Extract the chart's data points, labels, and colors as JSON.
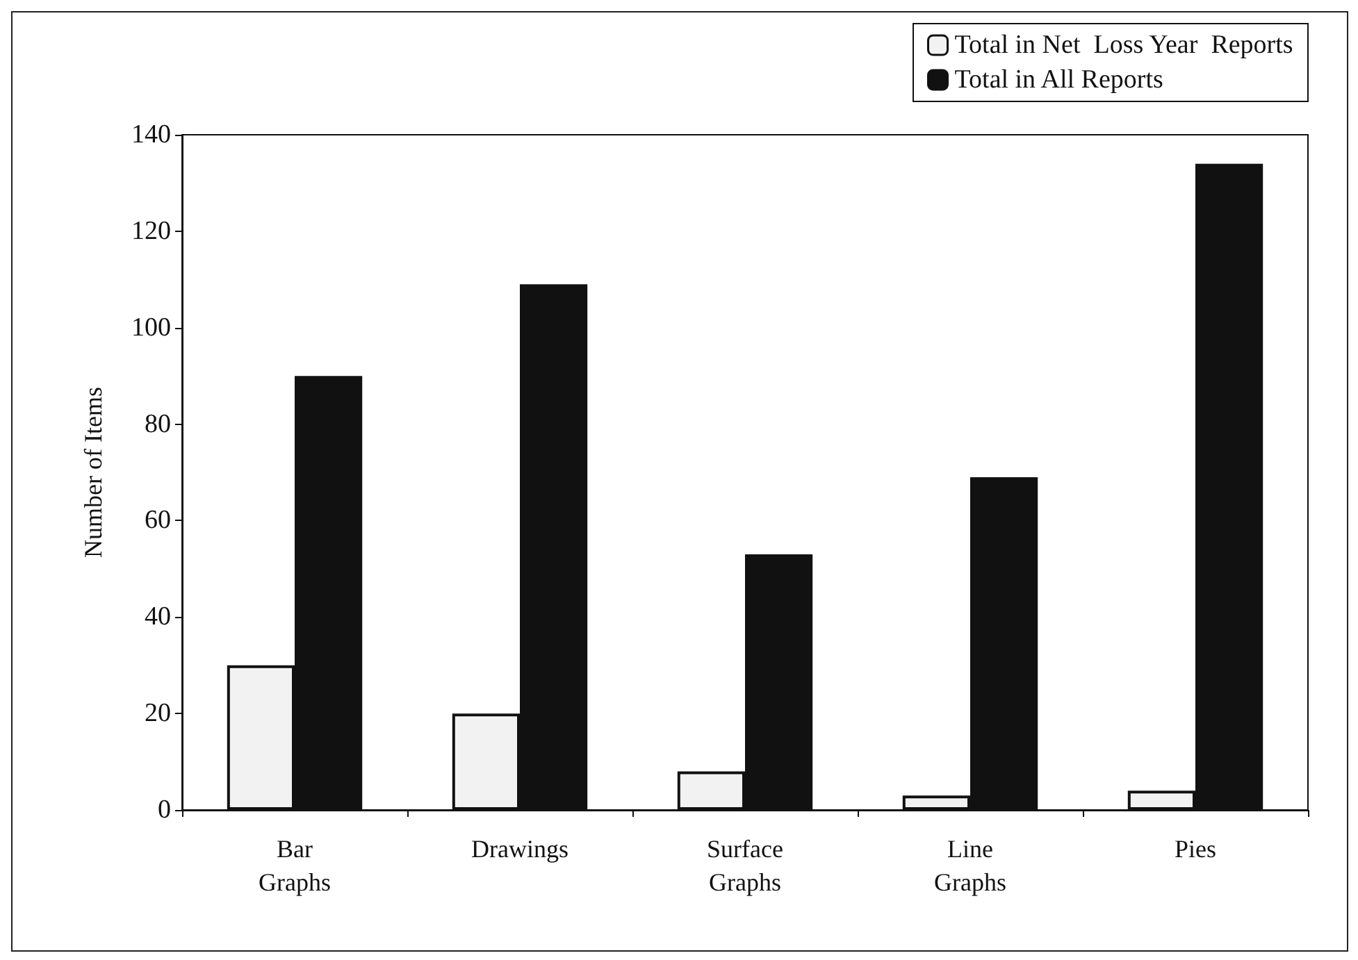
{
  "chart_data": {
    "type": "bar",
    "ylabel": "Number of Items",
    "categories": [
      "Bar\nGraphs",
      "Drawings",
      "Surface\nGraphs",
      "Line\nGraphs",
      "Pies"
    ],
    "series": [
      {
        "name": "Total in Net  Loss Year  Reports",
        "color": "#f2f2f2",
        "values": [
          30,
          20,
          8,
          3,
          4
        ]
      },
      {
        "name": "Total in All Reports",
        "color": "#111111",
        "values": [
          90,
          109,
          53,
          69,
          134
        ]
      }
    ],
    "ylim": [
      0,
      140
    ],
    "yticks": [
      0,
      20,
      40,
      60,
      80,
      100,
      120,
      140
    ],
    "grid": false,
    "legend": "top right"
  }
}
